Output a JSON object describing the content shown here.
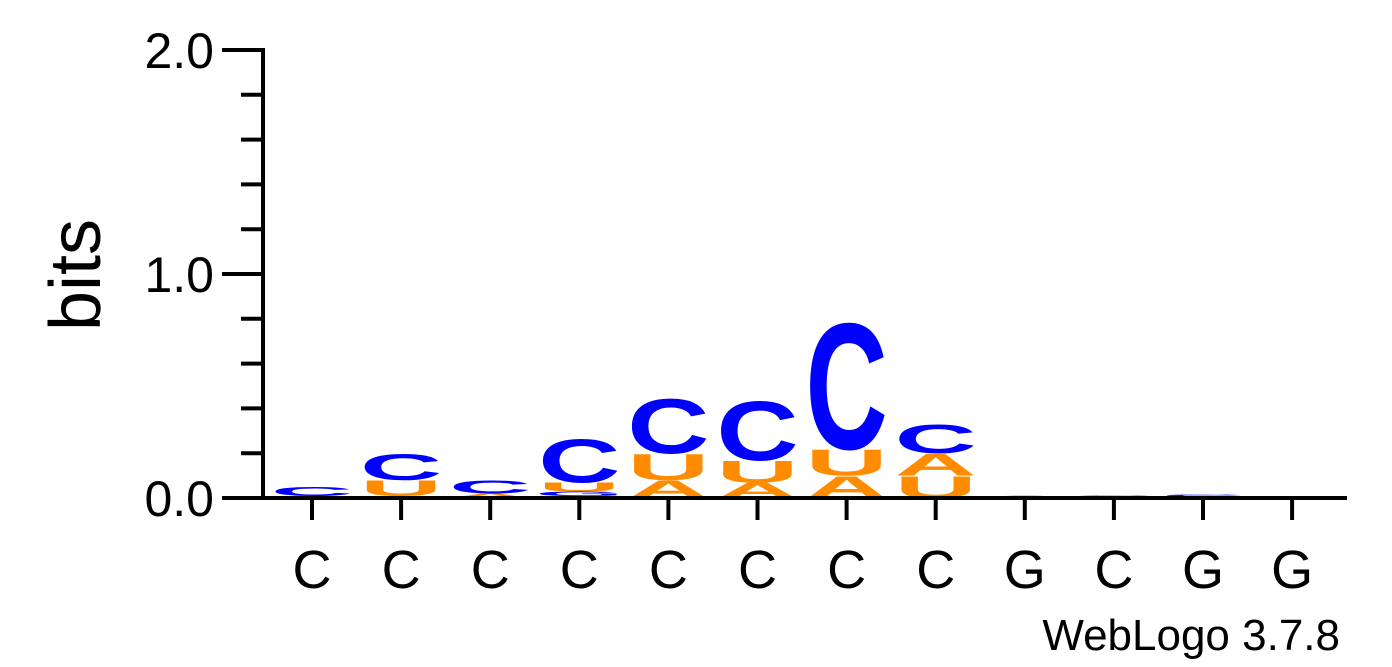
{
  "chart_data": {
    "type": "sequence-logo",
    "ylabel": "bits",
    "ylim": [
      0,
      2
    ],
    "yticks": [
      "0.0",
      "1.0",
      "2.0"
    ],
    "positions": [
      "C",
      "C",
      "C",
      "C",
      "C",
      "C",
      "C",
      "C",
      "G",
      "C",
      "G",
      "G"
    ],
    "credit": "WebLogo 3.7.8",
    "colors": {
      "C": "#0000ff",
      "U": "#ff8c00",
      "A": "#ff8c00",
      "G": "#0000ff"
    },
    "stacks": [
      [
        {
          "letter": "U",
          "bits": 0.005
        },
        {
          "letter": "A",
          "bits": 0.005
        },
        {
          "letter": "C",
          "bits": 0.04
        }
      ],
      [
        {
          "letter": "A",
          "bits": 0.01
        },
        {
          "letter": "U",
          "bits": 0.07
        },
        {
          "letter": "C",
          "bits": 0.12
        }
      ],
      [
        {
          "letter": "A",
          "bits": 0.02
        },
        {
          "letter": "C",
          "bits": 0.06
        }
      ],
      [
        {
          "letter": "A",
          "bits": 0.01
        },
        {
          "letter": "G",
          "bits": 0.02
        },
        {
          "letter": "U",
          "bits": 0.04
        },
        {
          "letter": "C",
          "bits": 0.2
        }
      ],
      [
        {
          "letter": "A",
          "bits": 0.08
        },
        {
          "letter": "U",
          "bits": 0.12
        },
        {
          "letter": "C",
          "bits": 0.25
        }
      ],
      [
        {
          "letter": "A",
          "bits": 0.07
        },
        {
          "letter": "U",
          "bits": 0.1
        },
        {
          "letter": "C",
          "bits": 0.27
        }
      ],
      [
        {
          "letter": "A",
          "bits": 0.1
        },
        {
          "letter": "U",
          "bits": 0.12
        },
        {
          "letter": "C",
          "bits": 0.58
        }
      ],
      [
        {
          "letter": "U",
          "bits": 0.1
        },
        {
          "letter": "A",
          "bits": 0.1
        },
        {
          "letter": "C",
          "bits": 0.13
        }
      ],
      [
        {
          "letter": "C",
          "bits": 0.005
        },
        {
          "letter": "A",
          "bits": 0.005
        }
      ],
      [
        {
          "letter": "U",
          "bits": 0.005
        },
        {
          "letter": "C",
          "bits": 0.005
        }
      ],
      [
        {
          "letter": "U",
          "bits": 0.005
        },
        {
          "letter": "G",
          "bits": 0.005
        },
        {
          "letter": "C",
          "bits": 0.005
        }
      ],
      []
    ]
  }
}
